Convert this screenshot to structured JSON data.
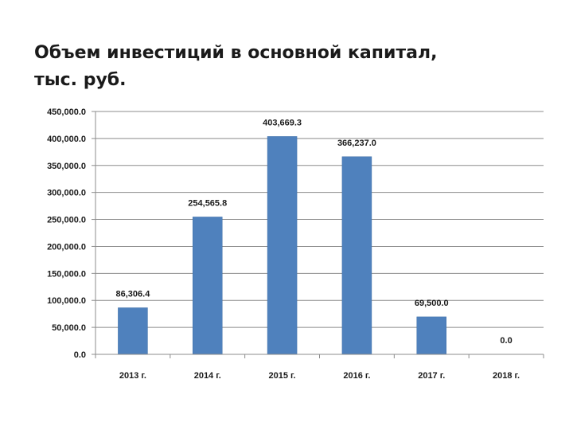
{
  "title": {
    "line1": "Объем инвестиций в основной капитал,",
    "line2": "тыс. руб."
  },
  "colors": {
    "bar": "#4f81bd",
    "bar_stroke": "#3f6fa8",
    "grid": "#8c8c8c",
    "axis": "#8c8c8c"
  },
  "chart_data": {
    "type": "bar",
    "categories": [
      "2013 г.",
      "2014 г.",
      "2015 г.",
      "2016 г.",
      "2017 г.",
      "2018 г."
    ],
    "values": [
      86306.4,
      254565.8,
      403669.3,
      366237.0,
      69500.0,
      0.0
    ],
    "value_labels": [
      "86,306.4",
      "254,565.8",
      "403,669.3",
      "366,237.0",
      "69,500.0",
      "0.0"
    ],
    "y_ticks": [
      0,
      50000,
      100000,
      150000,
      200000,
      250000,
      300000,
      350000,
      400000,
      450000
    ],
    "y_tick_labels": [
      "0.0",
      "50,000.0",
      "100,000.0",
      "150,000.0",
      "200,000.0",
      "250,000.0",
      "300,000.0",
      "350,000.0",
      "400,000.0",
      "450,000.0"
    ],
    "ylim": [
      0,
      450000
    ],
    "grid": true,
    "legend": "none",
    "xlabel": "",
    "ylabel": ""
  }
}
